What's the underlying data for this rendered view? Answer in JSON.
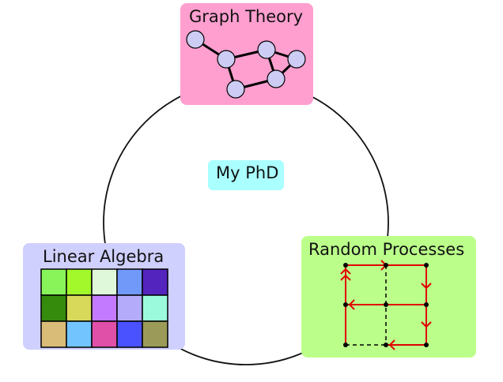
{
  "center": {
    "label": "My PhD",
    "color": "#aaffff"
  },
  "nodes": {
    "graph_theory": {
      "label": "Graph Theory",
      "color": "#ff9fcf"
    },
    "linear_algebra": {
      "label": "Linear Algebra",
      "color": "#d0d0ff"
    },
    "random_processes": {
      "label": "Random Processes",
      "color": "#bbff8a"
    }
  },
  "graph_icon": {
    "vertex_color": "#ccccf4"
  },
  "matrix_icon": {
    "colors": [
      [
        "#88f45a",
        "#a2f82a",
        "#e0f8da",
        "#7099fa",
        "#5424be"
      ],
      [
        "#358b0b",
        "#d8d85a",
        "#c47aff",
        "#b4acfa",
        "#9cfadc"
      ],
      [
        "#d8bc78",
        "#72c4ff",
        "#e050a8",
        "#4a52ff",
        "#9c9a58"
      ]
    ]
  },
  "walk_icon": {
    "arrow_color": "#e00000"
  }
}
